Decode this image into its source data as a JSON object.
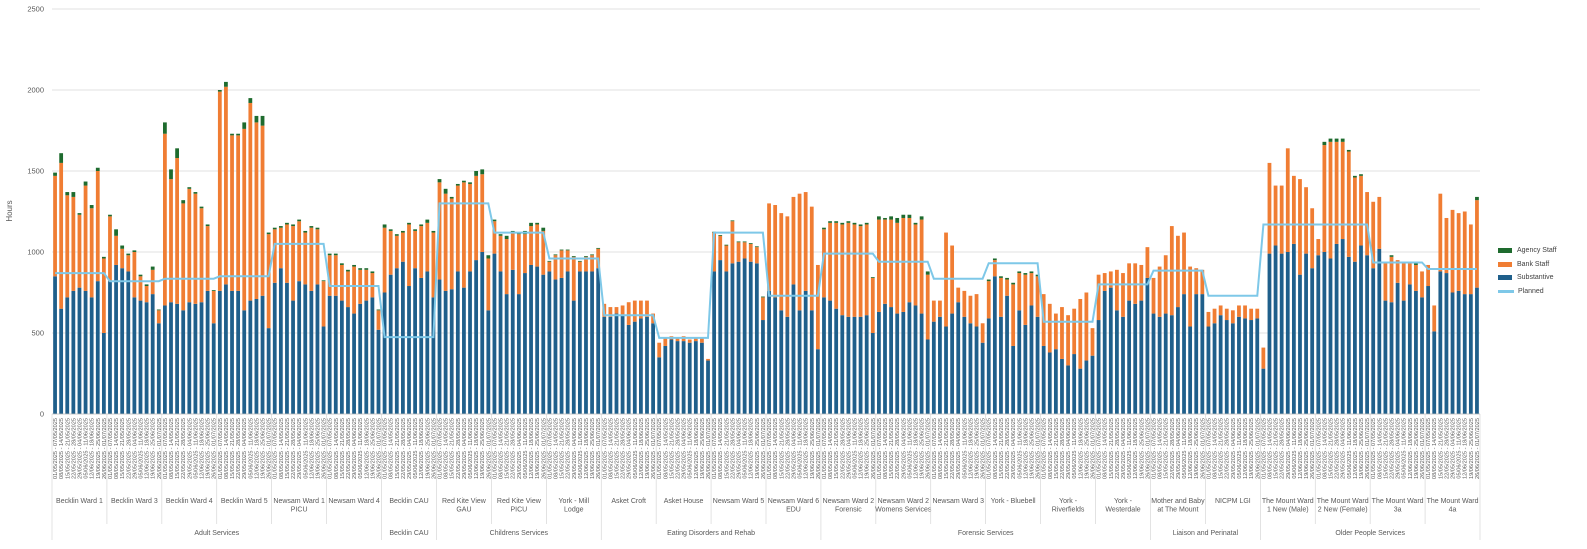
{
  "chart_data": {
    "type": "bar",
    "stacked": true,
    "ylabel": "Hours",
    "ylim": [
      0,
      2500
    ],
    "yticks": [
      0,
      500,
      1000,
      1500,
      2000,
      2500
    ],
    "grid": true,
    "legend_position": "right",
    "colors": {
      "Agency Staff": "#1e6b2e",
      "Bank Staff": "#f07d33",
      "Substantive": "#1f5f8b",
      "Planned": "#7ec8e8"
    },
    "legend": [
      "Agency Staff",
      "Bank Staff",
      "Substantive",
      "Planned"
    ],
    "period_labels": [
      "01/05/2025 - 07/05/2025",
      "08/05/2025 - 14/05/2025",
      "15/05/2025 - 21/05/2025",
      "22/05/2025 - 28/05/2025",
      "29/05/2025 - 04/06/2025",
      "05/06/2025 - 11/06/2025",
      "12/06/2025 - 18/06/2025",
      "19/06/2025 - 25/06/2025",
      "26/06/2025 - 01/07/2025"
    ],
    "groups": [
      {
        "division": "Adult Services",
        "ward": "Becklin Ward 1",
        "planned": 870,
        "substantive": [
          850,
          650,
          720,
          760,
          780,
          760,
          720,
          820,
          500
        ],
        "bank": [
          620,
          900,
          630,
          580,
          450,
          650,
          550,
          680,
          460
        ],
        "agency": [
          20,
          60,
          20,
          30,
          10,
          25,
          20,
          20,
          10
        ]
      },
      {
        "division": "Adult Services",
        "ward": "Becklin Ward 3",
        "planned": 820,
        "substantive": [
          820,
          920,
          900,
          880,
          720,
          700,
          690,
          740,
          560
        ],
        "bank": [
          400,
          180,
          120,
          100,
          280,
          150,
          100,
          150,
          80
        ],
        "agency": [
          10,
          40,
          20,
          10,
          10,
          10,
          10,
          20,
          5
        ]
      },
      {
        "division": "Adult Services",
        "ward": "Becklin Ward 4",
        "planned": 835,
        "substantive": [
          670,
          690,
          680,
          640,
          690,
          680,
          690,
          760,
          560
        ],
        "bank": [
          1060,
          760,
          900,
          660,
          700,
          680,
          580,
          400,
          200
        ],
        "agency": [
          70,
          60,
          60,
          20,
          10,
          10,
          10,
          10,
          5
        ]
      },
      {
        "division": "Adult Services",
        "ward": "Becklin Ward 5",
        "planned": 850,
        "substantive": [
          760,
          800,
          760,
          760,
          640,
          700,
          710,
          730,
          530
        ],
        "bank": [
          1230,
          1220,
          960,
          960,
          1120,
          1220,
          1090,
          1050,
          580
        ],
        "agency": [
          10,
          30,
          10,
          10,
          40,
          30,
          40,
          60,
          10
        ]
      },
      {
        "division": "Adult Services",
        "ward": "Newsam Ward 1 PICU",
        "planned": 1050,
        "substantive": [
          810,
          900,
          810,
          700,
          820,
          800,
          760,
          800,
          540
        ],
        "bank": [
          330,
          250,
          360,
          460,
          370,
          320,
          390,
          340,
          280
        ],
        "agency": [
          10,
          10,
          10,
          10,
          10,
          10,
          10,
          10,
          5
        ]
      },
      {
        "division": "Adult Services",
        "ward": "Newsam Ward 4",
        "planned": 790,
        "substantive": [
          730,
          730,
          700,
          660,
          620,
          680,
          700,
          720,
          520
        ],
        "bank": [
          250,
          250,
          220,
          220,
          290,
          210,
          190,
          150,
          120
        ],
        "agency": [
          10,
          10,
          10,
          10,
          10,
          10,
          10,
          10,
          5
        ]
      },
      {
        "division": "Becklin CAU",
        "ward": "Becklin CAU",
        "planned": 475,
        "substantive": [
          750,
          860,
          900,
          940,
          790,
          900,
          840,
          880,
          720
        ],
        "bank": [
          400,
          270,
          200,
          180,
          380,
          230,
          320,
          300,
          400
        ],
        "agency": [
          20,
          10,
          10,
          10,
          10,
          10,
          10,
          20,
          10
        ]
      },
      {
        "division": "Childrens Services",
        "ward": "Red Kite View GAU",
        "planned": 1300,
        "substantive": [
          830,
          760,
          770,
          880,
          780,
          880,
          950,
          1000,
          640
        ],
        "bank": [
          600,
          600,
          560,
          530,
          650,
          540,
          520,
          480,
          320
        ],
        "agency": [
          20,
          30,
          10,
          10,
          10,
          10,
          30,
          30,
          20
        ]
      },
      {
        "division": "Childrens Services",
        "ward": "Red Kite View PICU",
        "planned": 1120,
        "substantive": [
          990,
          880,
          740,
          890,
          740,
          870,
          920,
          910,
          860
        ],
        "bank": [
          200,
          220,
          340,
          230,
          370,
          240,
          240,
          260,
          270
        ],
        "agency": [
          10,
          10,
          20,
          10,
          10,
          20,
          20,
          10,
          20
        ]
      },
      {
        "division": "Childrens Services",
        "ward": "York - Mill Lodge",
        "planned": 960,
        "substantive": [
          880,
          830,
          840,
          880,
          700,
          880,
          880,
          880,
          900
        ],
        "bank": [
          60,
          150,
          170,
          130,
          270,
          60,
          90,
          100,
          120
        ],
        "agency": [
          5,
          5,
          5,
          5,
          5,
          5,
          5,
          5,
          5
        ]
      },
      {
        "division": "Eating Disorders and Rehab",
        "ward": "Asket Croft",
        "planned": 610,
        "substantive": [
          600,
          600,
          620,
          610,
          550,
          570,
          590,
          600,
          560
        ],
        "bank": [
          80,
          60,
          40,
          60,
          140,
          130,
          110,
          100,
          60
        ],
        "agency": [
          0,
          0,
          0,
          0,
          0,
          0,
          0,
          0,
          0
        ]
      },
      {
        "division": "Eating Disorders and Rehab",
        "ward": "Asket House",
        "planned": 470,
        "substantive": [
          350,
          420,
          460,
          450,
          450,
          440,
          450,
          440,
          330
        ],
        "bank": [
          90,
          50,
          20,
          20,
          30,
          20,
          20,
          30,
          10
        ],
        "agency": [
          0,
          0,
          0,
          0,
          0,
          0,
          0,
          0,
          0
        ]
      },
      {
        "division": "Eating Disorders and Rehab",
        "ward": "Newsam Ward 5",
        "planned": 1120,
        "substantive": [
          880,
          950,
          880,
          930,
          940,
          960,
          940,
          930,
          580
        ],
        "bank": [
          240,
          150,
          160,
          260,
          120,
          100,
          110,
          100,
          140
        ],
        "agency": [
          5,
          5,
          5,
          5,
          5,
          5,
          5,
          5,
          5
        ]
      },
      {
        "division": "Eating Disorders and Rehab",
        "ward": "Newsam Ward 6 EDU",
        "planned": 730,
        "substantive": [
          760,
          720,
          640,
          600,
          800,
          640,
          760,
          640,
          400
        ],
        "bank": [
          540,
          570,
          600,
          620,
          540,
          720,
          610,
          640,
          520
        ],
        "agency": [
          0,
          0,
          0,
          0,
          0,
          0,
          0,
          0,
          0
        ]
      },
      {
        "division": "Forensic Services",
        "ward": "Newsam Ward 2 Forensic",
        "planned": 990,
        "substantive": [
          720,
          700,
          650,
          610,
          600,
          600,
          600,
          610,
          500
        ],
        "bank": [
          420,
          480,
          530,
          560,
          580,
          570,
          560,
          560,
          340
        ],
        "agency": [
          10,
          10,
          10,
          10,
          10,
          10,
          10,
          10,
          5
        ]
      },
      {
        "division": "Forensic Services",
        "ward": "Newsam Ward 2 Womens Services",
        "planned": 940,
        "substantive": [
          630,
          680,
          660,
          620,
          630,
          690,
          670,
          620,
          460
        ],
        "bank": [
          570,
          520,
          540,
          560,
          580,
          520,
          500,
          580,
          400
        ],
        "agency": [
          20,
          10,
          20,
          30,
          20,
          20,
          10,
          20,
          20
        ]
      },
      {
        "division": "Forensic Services",
        "ward": "Newsam Ward 3",
        "planned": 835,
        "substantive": [
          570,
          600,
          540,
          620,
          690,
          600,
          560,
          540,
          440
        ],
        "bank": [
          130,
          100,
          580,
          420,
          90,
          160,
          170,
          200,
          120
        ],
        "agency": [
          0,
          0,
          0,
          0,
          0,
          0,
          0,
          0,
          0
        ]
      },
      {
        "division": "Forensic Services",
        "ward": "York - Bluebell",
        "planned": 930,
        "substantive": [
          590,
          850,
          600,
          730,
          420,
          640,
          550,
          670,
          600
        ],
        "bank": [
          230,
          100,
          240,
          100,
          380,
          230,
          310,
          200,
          250
        ],
        "agency": [
          10,
          10,
          10,
          10,
          10,
          10,
          10,
          10,
          10
        ]
      },
      {
        "division": "Forensic Services",
        "ward": "York - Riverfields",
        "planned": 570,
        "substantive": [
          420,
          380,
          400,
          340,
          300,
          370,
          280,
          330,
          360
        ],
        "bank": [
          320,
          300,
          220,
          320,
          310,
          280,
          430,
          420,
          170
        ],
        "agency": [
          0,
          0,
          0,
          0,
          0,
          0,
          0,
          0,
          0
        ]
      },
      {
        "division": "Forensic Services",
        "ward": "York - Westerdale",
        "planned": 800,
        "substantive": [
          580,
          760,
          780,
          640,
          600,
          700,
          680,
          700,
          840
        ],
        "bank": [
          280,
          110,
          100,
          250,
          270,
          230,
          250,
          220,
          190
        ],
        "agency": [
          0,
          0,
          0,
          0,
          0,
          0,
          0,
          0,
          0
        ]
      },
      {
        "division": "Liaison and Perinatal",
        "ward": "Mother and Baby at The Mount",
        "planned": 885,
        "substantive": [
          620,
          600,
          620,
          610,
          660,
          740,
          540,
          740,
          740
        ],
        "bank": [
          220,
          310,
          360,
          550,
          440,
          380,
          370,
          160,
          150
        ],
        "agency": [
          0,
          0,
          0,
          0,
          0,
          0,
          0,
          0,
          0
        ]
      },
      {
        "division": "Liaison and Perinatal",
        "ward": "NICPM LGI",
        "planned": 730,
        "substantive": [
          540,
          560,
          610,
          580,
          560,
          600,
          590,
          580,
          590
        ],
        "bank": [
          90,
          90,
          60,
          70,
          80,
          70,
          80,
          70,
          60
        ],
        "agency": [
          0,
          0,
          0,
          0,
          0,
          0,
          0,
          0,
          0
        ]
      },
      {
        "division": "Older People Services",
        "ward": "The Mount Ward 1 New (Male)",
        "planned": 1170,
        "substantive": [
          280,
          990,
          1040,
          990,
          1000,
          1050,
          860,
          990,
          900
        ],
        "bank": [
          130,
          560,
          370,
          420,
          640,
          420,
          590,
          410,
          370
        ],
        "agency": [
          0,
          0,
          0,
          0,
          0,
          0,
          0,
          0,
          0
        ]
      },
      {
        "division": "Older People Services",
        "ward": "The Mount Ward 2 New (Female)",
        "planned": 1170,
        "substantive": [
          980,
          1000,
          960,
          1050,
          1080,
          970,
          940,
          1040,
          980
        ],
        "bank": [
          100,
          660,
          720,
          630,
          600,
          650,
          520,
          430,
          390
        ],
        "agency": [
          0,
          20,
          20,
          20,
          20,
          10,
          10,
          10,
          0
        ]
      },
      {
        "division": "Older People Services",
        "ward": "The Mount Ward 3a",
        "planned": 935,
        "substantive": [
          900,
          1020,
          700,
          690,
          810,
          700,
          800,
          760,
          720
        ],
        "bank": [
          410,
          320,
          230,
          280,
          140,
          230,
          140,
          160,
          160
        ],
        "agency": [
          0,
          0,
          0,
          10,
          0,
          0,
          0,
          10,
          0
        ]
      },
      {
        "division": "Older People Services",
        "ward": "The Mount Ward 4a",
        "planned": 895,
        "substantive": [
          790,
          510,
          880,
          870,
          750,
          760,
          740,
          740,
          780
        ],
        "bank": [
          130,
          160,
          480,
          340,
          510,
          480,
          510,
          430,
          540
        ],
        "agency": [
          0,
          0,
          0,
          0,
          0,
          0,
          0,
          0,
          20
        ]
      }
    ]
  }
}
